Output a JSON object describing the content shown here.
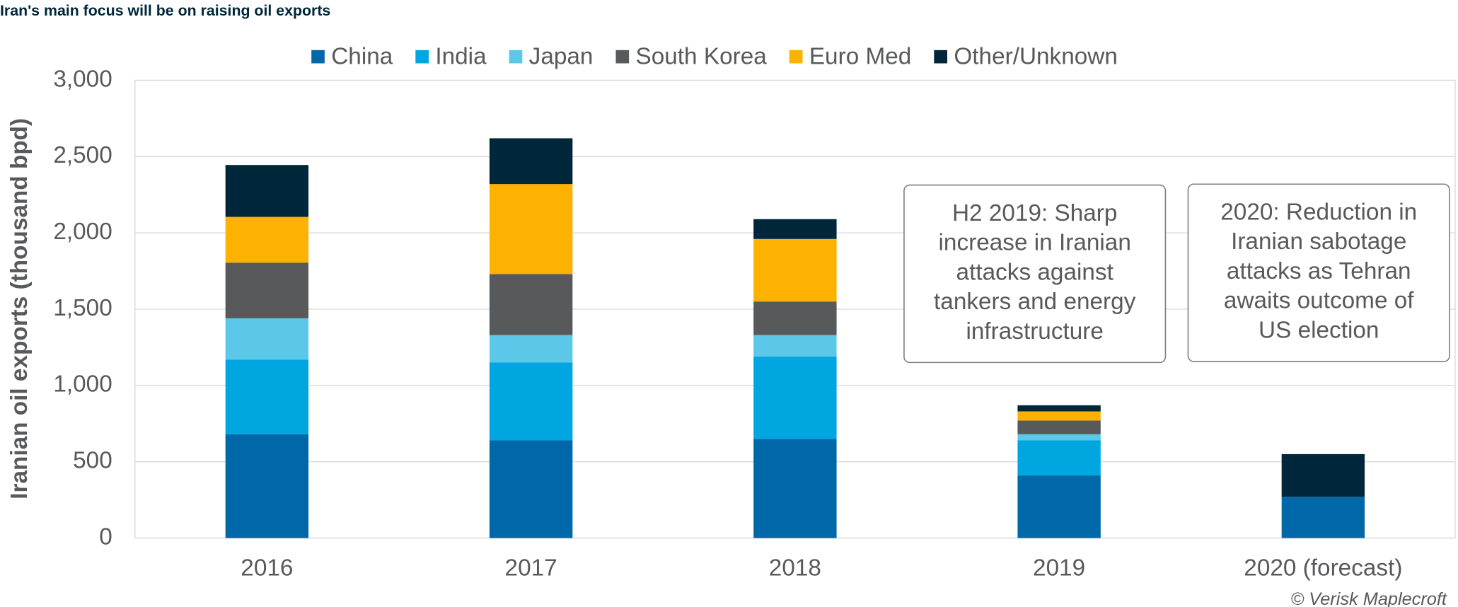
{
  "chart_data": {
    "type": "stacked_bar",
    "title": "Iran's main focus will be on raising oil exports",
    "y_label": "Iranian oil exports (thousand bpd)",
    "source": "© Verisk Maplecroft",
    "categories": [
      "2016",
      "2017",
      "2018",
      "2019",
      "2020 (forecast)"
    ],
    "series": [
      {
        "name": "China",
        "color": "#0068a8",
        "values": [
          680,
          640,
          650,
          410,
          270
        ]
      },
      {
        "name": "India",
        "color": "#00a6e0",
        "values": [
          490,
          510,
          540,
          230,
          0
        ]
      },
      {
        "name": "Japan",
        "color": "#5bc8ea",
        "values": [
          270,
          180,
          140,
          40,
          0
        ]
      },
      {
        "name": "South Korea",
        "color": "#58595b",
        "values": [
          365,
          400,
          220,
          90,
          0
        ]
      },
      {
        "name": "Euro Med",
        "color": "#fdb100",
        "values": [
          300,
          590,
          410,
          60,
          0
        ]
      },
      {
        "name": "Other/Unknown",
        "color": "#00263a",
        "values": [
          340,
          300,
          130,
          40,
          280
        ]
      }
    ],
    "ylim": [
      0,
      3000
    ],
    "yticks": [
      0,
      500,
      {
        "value": 1000,
        "label": "1,000"
      },
      {
        "value": 1500,
        "label": "1,500"
      },
      {
        "value": 2000,
        "label": "2,000"
      },
      {
        "value": 2500,
        "label": "2,500"
      },
      {
        "value": 3000,
        "label": "3,000"
      }
    ],
    "grid": true,
    "annotations": [
      {
        "lines": [
          "H2 2019: Sharp",
          "increase in Iranian",
          "attacks against",
          "tankers and energy",
          "infrastructure"
        ]
      },
      {
        "lines": [
          "2020: Reduction in",
          "Iranian sabotage",
          "attacks as Tehran",
          "awaits outcome of",
          "US election"
        ]
      }
    ]
  }
}
